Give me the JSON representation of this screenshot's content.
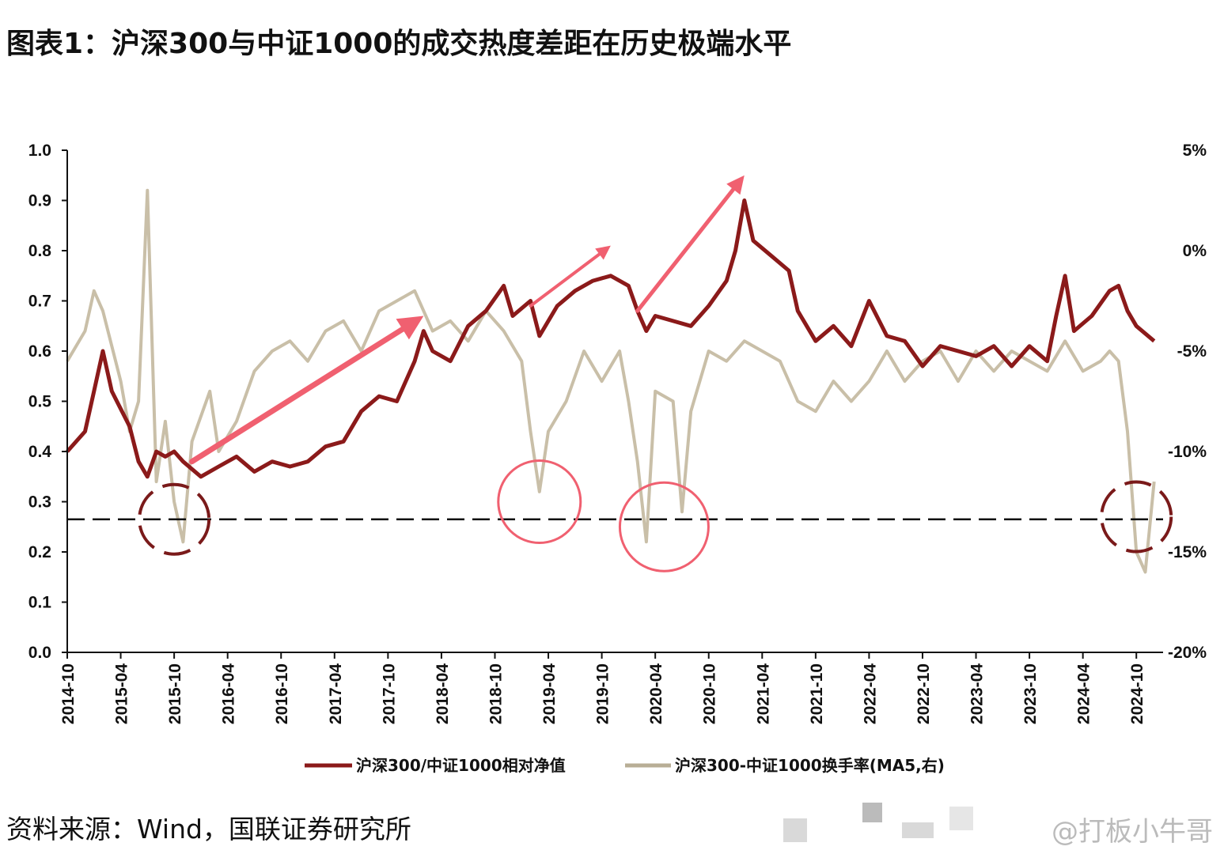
{
  "title": "图表1：沪深300与中证1000的成交热度差距在历史极端水平",
  "source": "资料来源：Wind，国联证券研究所",
  "watermark": "@打板小牛哥",
  "chart_data": {
    "type": "line",
    "left_axis": {
      "ticks": [
        "0.0",
        "0.1",
        "0.2",
        "0.3",
        "0.4",
        "0.5",
        "0.6",
        "0.7",
        "0.8",
        "0.9",
        "1.0"
      ],
      "ylim": [
        0.0,
        1.0
      ]
    },
    "right_axis": {
      "ticks": [
        "-20%",
        "-15%",
        "-10%",
        "-5%",
        "0%",
        "5%"
      ],
      "ylim": [
        -20,
        5
      ]
    },
    "x_ticks": [
      "2014-10",
      "2015-04",
      "2015-10",
      "2016-04",
      "2016-10",
      "2017-04",
      "2017-10",
      "2018-04",
      "2018-10",
      "2019-04",
      "2019-10",
      "2020-04",
      "2020-10",
      "2021-04",
      "2021-10",
      "2022-04",
      "2022-10",
      "2023-04",
      "2023-10",
      "2024-04",
      "2024-10"
    ],
    "colors": {
      "relative_nav": "#8b1a1a",
      "turnover_diff": "#c9bfa8",
      "arrow": "#f06070",
      "circle_red": "#f06070",
      "circle_dark": "#7a1a1a",
      "dashed": "#111111"
    },
    "reference_line": {
      "axis": "left",
      "value": 0.265,
      "style": "dashed"
    },
    "series": [
      {
        "name": "沪深300/中证1000相对净值",
        "axis": "left",
        "points": [
          [
            "2014-10",
            0.4
          ],
          [
            "2014-12",
            0.44
          ],
          [
            "2015-01",
            0.52
          ],
          [
            "2015-02",
            0.6
          ],
          [
            "2015-03",
            0.52
          ],
          [
            "2015-05",
            0.45
          ],
          [
            "2015-06",
            0.38
          ],
          [
            "2015-07",
            0.35
          ],
          [
            "2015-08",
            0.4
          ],
          [
            "2015-09",
            0.39
          ],
          [
            "2015-10",
            0.4
          ],
          [
            "2015-11",
            0.38
          ],
          [
            "2016-01",
            0.35
          ],
          [
            "2016-03",
            0.37
          ],
          [
            "2016-05",
            0.39
          ],
          [
            "2016-07",
            0.36
          ],
          [
            "2016-09",
            0.38
          ],
          [
            "2016-11",
            0.37
          ],
          [
            "2017-01",
            0.38
          ],
          [
            "2017-03",
            0.41
          ],
          [
            "2017-05",
            0.42
          ],
          [
            "2017-07",
            0.48
          ],
          [
            "2017-09",
            0.51
          ],
          [
            "2017-11",
            0.5
          ],
          [
            "2018-01",
            0.58
          ],
          [
            "2018-02",
            0.64
          ],
          [
            "2018-03",
            0.6
          ],
          [
            "2018-05",
            0.58
          ],
          [
            "2018-07",
            0.65
          ],
          [
            "2018-09",
            0.68
          ],
          [
            "2018-11",
            0.73
          ],
          [
            "2018-12",
            0.67
          ],
          [
            "2019-02",
            0.7
          ],
          [
            "2019-03",
            0.63
          ],
          [
            "2019-05",
            0.69
          ],
          [
            "2019-07",
            0.72
          ],
          [
            "2019-09",
            0.74
          ],
          [
            "2019-11",
            0.75
          ],
          [
            "2020-01",
            0.73
          ],
          [
            "2020-02",
            0.68
          ],
          [
            "2020-03",
            0.64
          ],
          [
            "2020-04",
            0.67
          ],
          [
            "2020-06",
            0.66
          ],
          [
            "2020-08",
            0.65
          ],
          [
            "2020-10",
            0.69
          ],
          [
            "2020-12",
            0.74
          ],
          [
            "2021-01",
            0.8
          ],
          [
            "2021-02",
            0.9
          ],
          [
            "2021-03",
            0.82
          ],
          [
            "2021-05",
            0.79
          ],
          [
            "2021-07",
            0.76
          ],
          [
            "2021-08",
            0.68
          ],
          [
            "2021-10",
            0.62
          ],
          [
            "2021-12",
            0.65
          ],
          [
            "2022-02",
            0.61
          ],
          [
            "2022-04",
            0.7
          ],
          [
            "2022-06",
            0.63
          ],
          [
            "2022-08",
            0.62
          ],
          [
            "2022-10",
            0.57
          ],
          [
            "2022-12",
            0.61
          ],
          [
            "2023-02",
            0.6
          ],
          [
            "2023-04",
            0.59
          ],
          [
            "2023-06",
            0.61
          ],
          [
            "2023-08",
            0.57
          ],
          [
            "2023-10",
            0.61
          ],
          [
            "2023-12",
            0.58
          ],
          [
            "2024-01",
            0.67
          ],
          [
            "2024-02",
            0.75
          ],
          [
            "2024-03",
            0.64
          ],
          [
            "2024-05",
            0.67
          ],
          [
            "2024-07",
            0.72
          ],
          [
            "2024-08",
            0.73
          ],
          [
            "2024-09",
            0.68
          ],
          [
            "2024-10",
            0.65
          ],
          [
            "2024-12",
            0.62
          ]
        ]
      },
      {
        "name": "沪深300-中证1000换手率(MA5,右)",
        "axis": "right",
        "points": [
          [
            "2014-10",
            -5.5
          ],
          [
            "2014-12",
            -4.0
          ],
          [
            "2015-01",
            -2.0
          ],
          [
            "2015-02",
            -3.0
          ],
          [
            "2015-04",
            -6.5
          ],
          [
            "2015-05",
            -9.0
          ],
          [
            "2015-06",
            -7.5
          ],
          [
            "2015-07",
            3.0
          ],
          [
            "2015-08",
            -11.5
          ],
          [
            "2015-09",
            -8.5
          ],
          [
            "2015-10",
            -12.5
          ],
          [
            "2015-11",
            -14.5
          ],
          [
            "2015-12",
            -9.5
          ],
          [
            "2016-02",
            -7.0
          ],
          [
            "2016-03",
            -10.0
          ],
          [
            "2016-05",
            -8.5
          ],
          [
            "2016-07",
            -6.0
          ],
          [
            "2016-09",
            -5.0
          ],
          [
            "2016-11",
            -4.5
          ],
          [
            "2017-01",
            -5.5
          ],
          [
            "2017-03",
            -4.0
          ],
          [
            "2017-05",
            -3.5
          ],
          [
            "2017-07",
            -5.0
          ],
          [
            "2017-09",
            -3.0
          ],
          [
            "2017-11",
            -2.5
          ],
          [
            "2018-01",
            -2.0
          ],
          [
            "2018-03",
            -4.0
          ],
          [
            "2018-05",
            -3.5
          ],
          [
            "2018-07",
            -4.5
          ],
          [
            "2018-09",
            -3.0
          ],
          [
            "2018-11",
            -4.0
          ],
          [
            "2019-01",
            -5.5
          ],
          [
            "2019-02",
            -9.0
          ],
          [
            "2019-03",
            -12.0
          ],
          [
            "2019-04",
            -9.0
          ],
          [
            "2019-06",
            -7.5
          ],
          [
            "2019-08",
            -5.0
          ],
          [
            "2019-10",
            -6.5
          ],
          [
            "2019-12",
            -5.0
          ],
          [
            "2020-01",
            -7.5
          ],
          [
            "2020-02",
            -10.5
          ],
          [
            "2020-03",
            -14.5
          ],
          [
            "2020-04",
            -7.0
          ],
          [
            "2020-06",
            -7.5
          ],
          [
            "2020-07",
            -13.0
          ],
          [
            "2020-08",
            -8.0
          ],
          [
            "2020-10",
            -5.0
          ],
          [
            "2020-12",
            -5.5
          ],
          [
            "2021-02",
            -4.5
          ],
          [
            "2021-04",
            -5.0
          ],
          [
            "2021-06",
            -5.5
          ],
          [
            "2021-08",
            -7.5
          ],
          [
            "2021-10",
            -8.0
          ],
          [
            "2021-12",
            -6.5
          ],
          [
            "2022-02",
            -7.5
          ],
          [
            "2022-04",
            -6.5
          ],
          [
            "2022-06",
            -5.0
          ],
          [
            "2022-08",
            -6.5
          ],
          [
            "2022-10",
            -5.5
          ],
          [
            "2022-12",
            -5.0
          ],
          [
            "2023-02",
            -6.5
          ],
          [
            "2023-04",
            -5.0
          ],
          [
            "2023-06",
            -6.0
          ],
          [
            "2023-08",
            -5.0
          ],
          [
            "2023-10",
            -5.5
          ],
          [
            "2023-12",
            -6.0
          ],
          [
            "2024-02",
            -4.5
          ],
          [
            "2024-04",
            -6.0
          ],
          [
            "2024-06",
            -5.5
          ],
          [
            "2024-07",
            -5.0
          ],
          [
            "2024-08",
            -5.5
          ],
          [
            "2024-09",
            -9.0
          ],
          [
            "2024-10",
            -15.0
          ],
          [
            "2024-11",
            -16.0
          ],
          [
            "2024-12",
            -11.5
          ]
        ]
      }
    ]
  }
}
